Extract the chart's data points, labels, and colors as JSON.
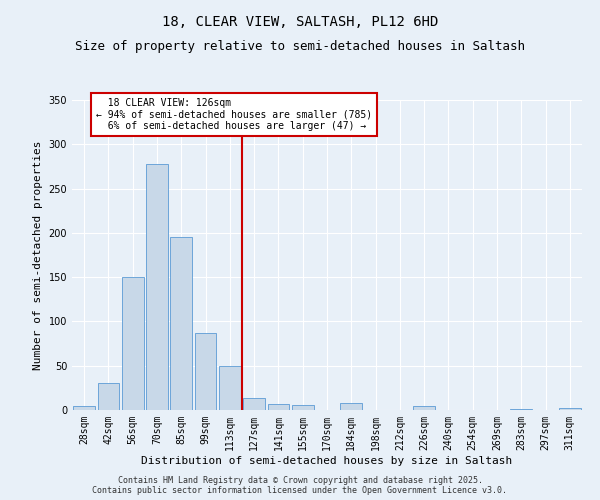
{
  "title": "18, CLEAR VIEW, SALTASH, PL12 6HD",
  "subtitle": "Size of property relative to semi-detached houses in Saltash",
  "xlabel": "Distribution of semi-detached houses by size in Saltash",
  "ylabel": "Number of semi-detached properties",
  "categories": [
    "28sqm",
    "42sqm",
    "56sqm",
    "70sqm",
    "85sqm",
    "99sqm",
    "113sqm",
    "127sqm",
    "141sqm",
    "155sqm",
    "170sqm",
    "184sqm",
    "198sqm",
    "212sqm",
    "226sqm",
    "240sqm",
    "254sqm",
    "269sqm",
    "283sqm",
    "297sqm",
    "311sqm"
  ],
  "values": [
    5,
    30,
    150,
    278,
    195,
    87,
    50,
    13,
    7,
    6,
    0,
    8,
    0,
    0,
    4,
    0,
    0,
    0,
    1,
    0,
    2
  ],
  "bar_color": "#c8d8e8",
  "bar_edge_color": "#5b9bd5",
  "property_line_x": 7,
  "property_sqm": 126,
  "pct_smaller": 94,
  "count_smaller": 785,
  "pct_larger": 6,
  "count_larger": 47,
  "annotation_label": "18 CLEAR VIEW: 126sqm",
  "ylim": [
    0,
    350
  ],
  "yticks": [
    0,
    50,
    100,
    150,
    200,
    250,
    300,
    350
  ],
  "bg_color": "#e8f0f8",
  "plot_bg_color": "#e8f0f8",
  "footer_line1": "Contains HM Land Registry data © Crown copyright and database right 2025.",
  "footer_line2": "Contains public sector information licensed under the Open Government Licence v3.0.",
  "red_line_color": "#cc0000",
  "annotation_box_color": "#cc0000",
  "title_fontsize": 10,
  "subtitle_fontsize": 9,
  "axis_label_fontsize": 8,
  "tick_fontsize": 7,
  "annotation_fontsize": 7,
  "footer_fontsize": 6
}
